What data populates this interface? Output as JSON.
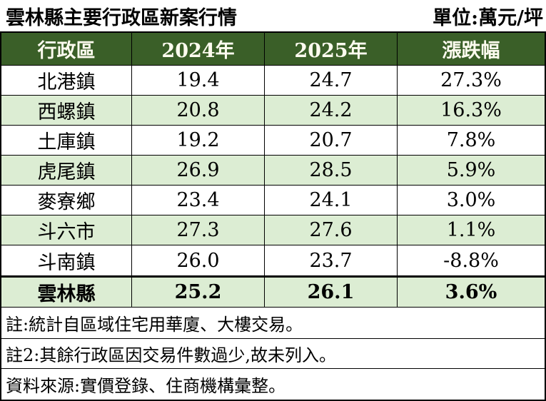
{
  "title": "雲林縣主要行政區新案行情",
  "unit_label": "單位:萬元/坪",
  "table": {
    "headers": {
      "district": "行政區",
      "y2024": "2024年",
      "y2025": "2025年",
      "change": "漲跌幅"
    },
    "rows": [
      {
        "district": "北港鎮",
        "y2024": "19.4",
        "y2025": "24.7",
        "change": "27.3%"
      },
      {
        "district": "西螺鎮",
        "y2024": "20.8",
        "y2025": "24.2",
        "change": "16.3%"
      },
      {
        "district": "土庫鎮",
        "y2024": "19.2",
        "y2025": "20.7",
        "change": "7.8%"
      },
      {
        "district": "虎尾鎮",
        "y2024": "26.9",
        "y2025": "28.5",
        "change": "5.9%"
      },
      {
        "district": "麥寮鄉",
        "y2024": "23.4",
        "y2025": "24.1",
        "change": "3.0%"
      },
      {
        "district": "斗六市",
        "y2024": "27.3",
        "y2025": "27.6",
        "change": "1.1%"
      },
      {
        "district": "斗南鎮",
        "y2024": "26.0",
        "y2025": "23.7",
        "change": "-8.8%"
      }
    ],
    "summary": {
      "district": "雲林縣",
      "y2024": "25.2",
      "y2025": "26.1",
      "change": "3.6%"
    }
  },
  "notes": [
    "註:統計自區域住宅用華廈、大樓交易。",
    "註2:其餘行政區因交易件數過少,故未列入。",
    "資料來源:實價登錄、住商機構彙整。"
  ],
  "colors": {
    "header_bg": "#3A5F28",
    "header_text": "#FDFBEF",
    "row_alt_bg": "#DCEDD3",
    "row_bg": "#FFFFFF",
    "border": "#000000",
    "text": "#000000"
  },
  "chart_data": {
    "type": "table",
    "title": "雲林縣主要行政區新案行情",
    "unit": "萬元/坪",
    "columns": [
      "行政區",
      "2024年",
      "2025年",
      "漲跌幅"
    ],
    "rows": [
      [
        "北港鎮",
        19.4,
        24.7,
        "27.3%"
      ],
      [
        "西螺鎮",
        20.8,
        24.2,
        "16.3%"
      ],
      [
        "土庫鎮",
        19.2,
        20.7,
        "7.8%"
      ],
      [
        "虎尾鎮",
        26.9,
        28.5,
        "5.9%"
      ],
      [
        "麥寮鄉",
        23.4,
        24.1,
        "3.0%"
      ],
      [
        "斗六市",
        27.3,
        27.6,
        "1.1%"
      ],
      [
        "斗南鎮",
        26.0,
        23.7,
        "-8.8%"
      ],
      [
        "雲林縣",
        25.2,
        26.1,
        "3.6%"
      ]
    ],
    "notes": [
      "註:統計自區域住宅用華廈、大樓交易。",
      "註2:其餘行政區因交易件數過少,故未列入。",
      "資料來源:實價登錄、住商機構彙整。"
    ],
    "layout_hints": {
      "header_style": "dark-green background, ivory bold text",
      "row_striping": "alternating white / light green, summary row green bold with thick top border"
    }
  }
}
